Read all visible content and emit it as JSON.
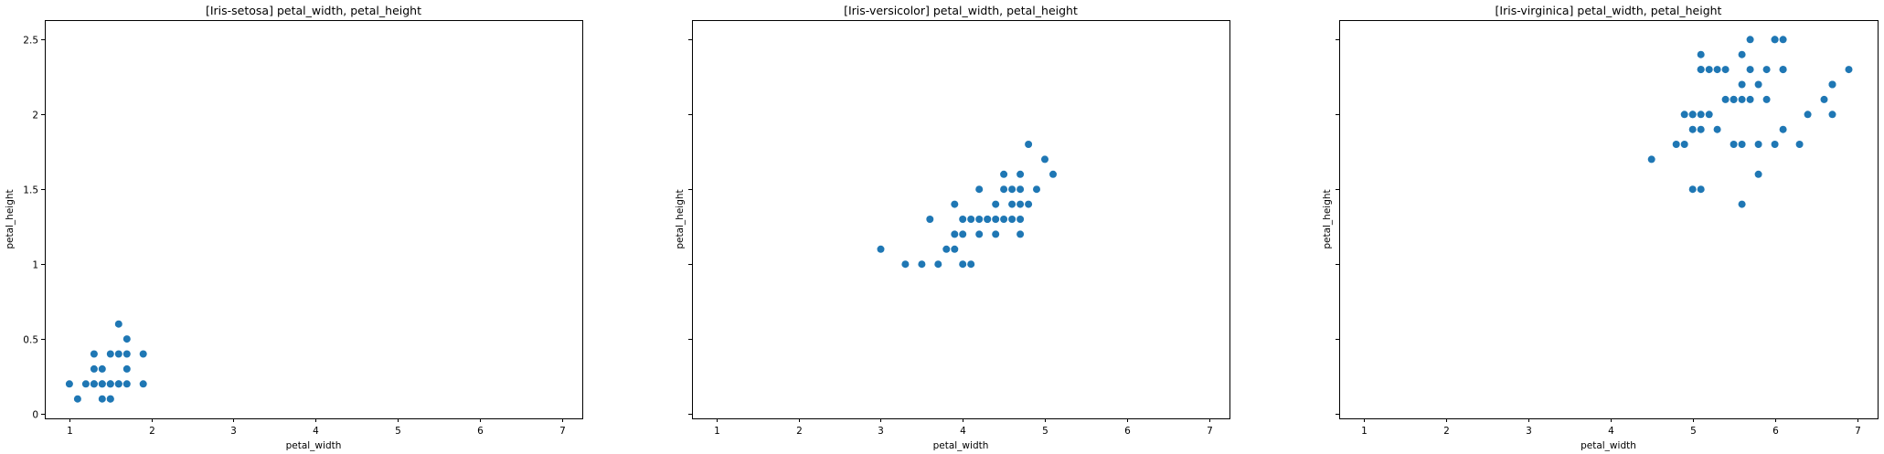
{
  "chart_data": [
    {
      "type": "scatter",
      "title": "[Iris-setosa] petal_width, petal_height",
      "xlabel": "petal_width",
      "ylabel": "petal_height",
      "xlim": [
        0.7,
        7.25
      ],
      "ylim": [
        -0.03,
        2.63
      ],
      "xticks": [
        1,
        2,
        3,
        4,
        5,
        6,
        7
      ],
      "yticks": [
        0.0,
        0.5,
        1.0,
        1.5,
        2.0,
        2.5
      ],
      "show_ytick_labels": true,
      "grid": false,
      "color": "#1f77b4",
      "x": [
        1.0,
        1.1,
        1.2,
        1.3,
        1.3,
        1.3,
        1.3,
        1.4,
        1.4,
        1.4,
        1.4,
        1.5,
        1.5,
        1.5,
        1.5,
        1.5,
        1.6,
        1.6,
        1.6,
        1.6,
        1.7,
        1.7,
        1.7,
        1.7,
        1.9,
        1.9
      ],
      "y": [
        0.2,
        0.1,
        0.2,
        0.2,
        0.3,
        0.4,
        0.2,
        0.1,
        0.2,
        0.3,
        0.2,
        0.1,
        0.2,
        0.4,
        0.2,
        0.1,
        0.2,
        0.4,
        0.6,
        0.2,
        0.2,
        0.3,
        0.4,
        0.5,
        0.2,
        0.4
      ]
    },
    {
      "type": "scatter",
      "title": "[Iris-versicolor] petal_width, petal_height",
      "xlabel": "petal_width",
      "ylabel": "petal_height",
      "xlim": [
        0.7,
        7.25
      ],
      "ylim": [
        -0.03,
        2.63
      ],
      "xticks": [
        1,
        2,
        3,
        4,
        5,
        6,
        7
      ],
      "yticks": [
        0.0,
        0.5,
        1.0,
        1.5,
        2.0,
        2.5
      ],
      "show_ytick_labels": false,
      "grid": false,
      "color": "#1f77b4",
      "x": [
        3.0,
        3.3,
        3.5,
        3.6,
        3.7,
        3.8,
        3.9,
        3.9,
        3.9,
        4.0,
        4.0,
        4.0,
        4.1,
        4.1,
        4.2,
        4.2,
        4.2,
        4.3,
        4.3,
        4.4,
        4.4,
        4.4,
        4.5,
        4.5,
        4.5,
        4.6,
        4.6,
        4.6,
        4.7,
        4.7,
        4.7,
        4.7,
        4.7,
        4.8,
        4.8,
        4.9,
        5.0,
        5.1
      ],
      "y": [
        1.1,
        1.0,
        1.0,
        1.3,
        1.0,
        1.1,
        1.1,
        1.2,
        1.4,
        1.0,
        1.2,
        1.3,
        1.0,
        1.3,
        1.2,
        1.3,
        1.5,
        1.3,
        1.3,
        1.2,
        1.3,
        1.4,
        1.3,
        1.5,
        1.6,
        1.3,
        1.4,
        1.5,
        1.2,
        1.4,
        1.5,
        1.6,
        1.3,
        1.4,
        1.8,
        1.5,
        1.7,
        1.6
      ]
    },
    {
      "type": "scatter",
      "title": "[Iris-virginica] petal_width, petal_height",
      "xlabel": "petal_width",
      "ylabel": "petal_height",
      "xlim": [
        0.7,
        7.25
      ],
      "ylim": [
        -0.03,
        2.63
      ],
      "xticks": [
        1,
        2,
        3,
        4,
        5,
        6,
        7
      ],
      "yticks": [
        0.0,
        0.5,
        1.0,
        1.5,
        2.0,
        2.5
      ],
      "show_ytick_labels": false,
      "grid": false,
      "color": "#1f77b4",
      "x": [
        4.5,
        4.8,
        4.9,
        4.9,
        5.0,
        5.0,
        5.0,
        5.0,
        5.1,
        5.1,
        5.1,
        5.1,
        5.1,
        5.1,
        5.2,
        5.2,
        5.3,
        5.3,
        5.4,
        5.4,
        5.5,
        5.5,
        5.5,
        5.6,
        5.6,
        5.6,
        5.6,
        5.6,
        5.7,
        5.7,
        5.7,
        5.8,
        5.8,
        5.8,
        5.9,
        5.9,
        6.0,
        6.0,
        6.0,
        6.1,
        6.1,
        6.1,
        6.1,
        6.3,
        6.4,
        6.6,
        6.7,
        6.7,
        6.7,
        6.9
      ],
      "y": [
        1.7,
        1.8,
        1.8,
        2.0,
        1.5,
        1.9,
        2.0,
        2.0,
        1.5,
        1.9,
        2.0,
        2.3,
        2.4,
        2.3,
        2.0,
        2.3,
        1.9,
        2.3,
        2.1,
        2.3,
        1.8,
        2.1,
        2.1,
        1.4,
        1.8,
        2.1,
        2.2,
        2.4,
        2.1,
        2.3,
        2.5,
        1.6,
        1.8,
        2.2,
        2.1,
        2.3,
        1.8,
        2.5,
        2.5,
        1.9,
        2.3,
        2.5,
        2.3,
        1.8,
        2.0,
        2.1,
        2.0,
        2.2,
        2.2,
        2.3
      ]
    }
  ]
}
